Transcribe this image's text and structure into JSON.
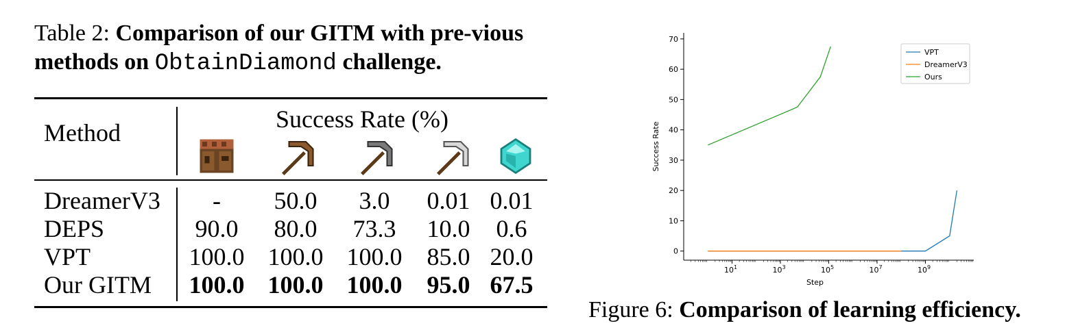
{
  "table_caption": {
    "label": "Table 2:",
    "bold_before": "Comparison of our GITM with pre-vious methods on",
    "mono": "ObtainDiamond",
    "bold_after": "challenge."
  },
  "table": {
    "method_header": "Method",
    "group_header": "Success Rate (%)",
    "icon_columns": [
      "crafting-table-icon",
      "wooden-pickaxe-icon",
      "stone-pickaxe-icon",
      "iron-pickaxe-icon",
      "diamond-icon"
    ],
    "rows": [
      {
        "method": "DreamerV3",
        "values": [
          "-",
          "50.0",
          "3.0",
          "0.01",
          "0.01"
        ],
        "bold": false
      },
      {
        "method": "DEPS",
        "values": [
          "90.0",
          "80.0",
          "73.3",
          "10.0",
          "0.6"
        ],
        "bold": false
      },
      {
        "method": "VPT",
        "values": [
          "100.0",
          "100.0",
          "100.0",
          "85.0",
          "20.0"
        ],
        "bold": false
      },
      {
        "method": "Our GITM",
        "values": [
          "100.0",
          "100.0",
          "100.0",
          "95.0",
          "67.5"
        ],
        "bold": true
      }
    ]
  },
  "figure_caption": {
    "label": "Figure 6:",
    "bold": "Comparison of learning efficiency."
  },
  "chart_data": {
    "type": "line",
    "title": "",
    "xlabel": "Step",
    "ylabel": "Success Rate",
    "xscale": "log",
    "xlim": [
      0.1,
      100000000000
    ],
    "ylim": [
      -3,
      72
    ],
    "xticks": [
      10,
      1000,
      100000,
      10000000,
      1000000000
    ],
    "xtick_labels": [
      "10",
      "1",
      "10",
      "3",
      "10",
      "5",
      "10",
      "7",
      "10",
      "9"
    ],
    "yticks": [
      0,
      10,
      20,
      30,
      40,
      50,
      60,
      70
    ],
    "ytick_labels": [
      "0",
      "10",
      "20",
      "30",
      "40",
      "50",
      "60",
      "70"
    ],
    "legend_position": "top-right",
    "grid": false,
    "series": [
      {
        "name": "VPT",
        "color": "#1f77b4",
        "x": [
          1,
          1000000000,
          10000000000,
          20000000000
        ],
        "y": [
          0,
          0,
          5,
          20
        ]
      },
      {
        "name": "DreamerV3",
        "color": "#ff7f0e",
        "x": [
          1,
          100000000
        ],
        "y": [
          0,
          0
        ]
      },
      {
        "name": "Ours",
        "color": "#2ca02c",
        "x": [
          1,
          5000,
          45000,
          120000
        ],
        "y": [
          35,
          47.5,
          57.5,
          67.5
        ]
      }
    ]
  }
}
